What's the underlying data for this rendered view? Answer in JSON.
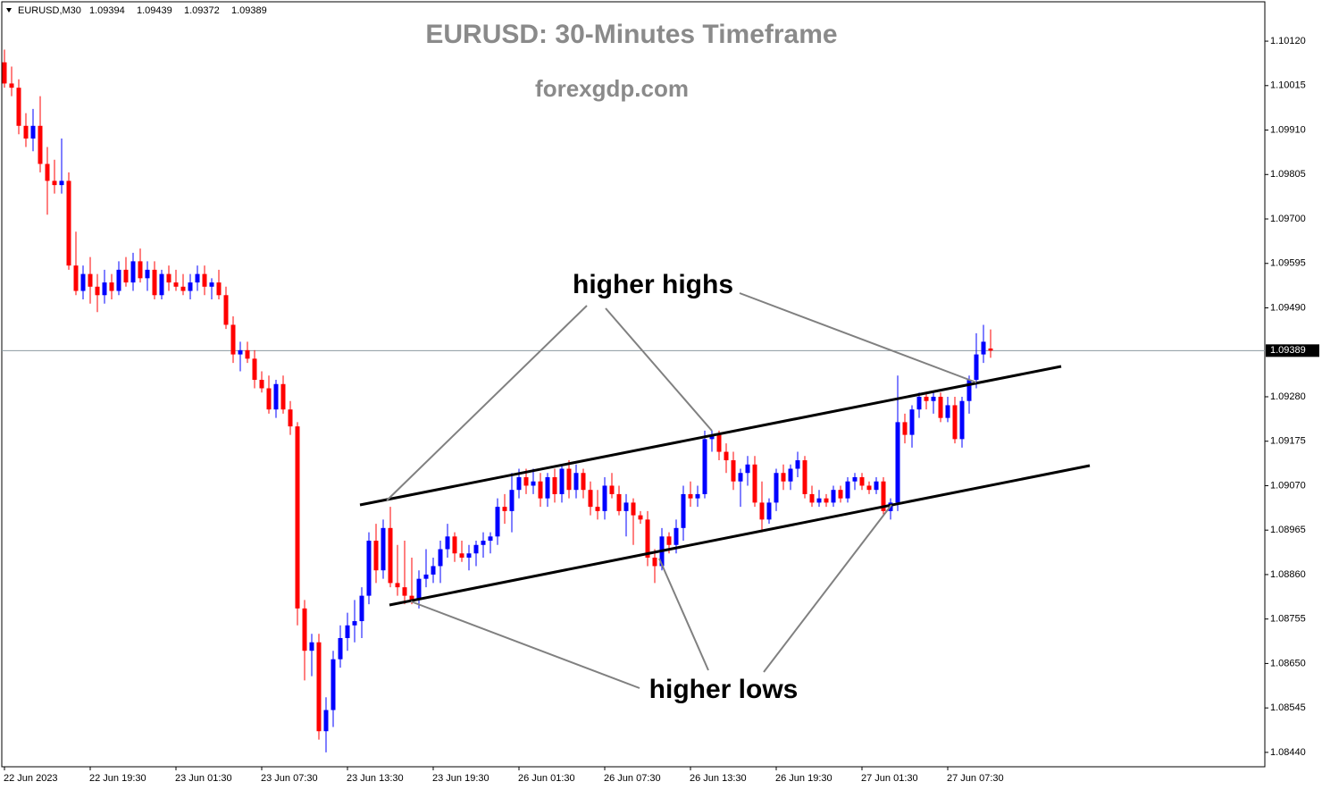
{
  "chart_data": {
    "type": "candlestick",
    "symbol": "EURUSD,M30",
    "header_ohlc": [
      1.09394,
      1.09439,
      1.09372,
      1.09389
    ],
    "title": "EURUSD: 30-Minutes Timeframe",
    "subtitle": "forexgdp.com",
    "annotations": [
      "higher highs",
      "higher lows"
    ],
    "up_color": "#0000ff",
    "down_color": "#ff0000",
    "current_price": 1.09389,
    "ylim": [
      1.08406,
      1.10213
    ],
    "yticks": [
      {
        "value": 1.1012,
        "label": "1.10120"
      },
      {
        "value": 1.10015,
        "label": "1.10015"
      },
      {
        "value": 1.0991,
        "label": "1.09910"
      },
      {
        "value": 1.09805,
        "label": "1.09805"
      },
      {
        "value": 1.097,
        "label": "1.09700"
      },
      {
        "value": 1.09595,
        "label": "1.09595"
      },
      {
        "value": 1.0949,
        "label": "1.09490"
      },
      {
        "value": 1.0928,
        "label": "1.09280"
      },
      {
        "value": 1.09175,
        "label": "1.09175"
      },
      {
        "value": 1.0907,
        "label": "1.09070"
      },
      {
        "value": 1.08965,
        "label": "1.08965"
      },
      {
        "value": 1.0886,
        "label": "1.08860"
      },
      {
        "value": 1.08755,
        "label": "1.08755"
      },
      {
        "value": 1.0865,
        "label": "1.08650"
      },
      {
        "value": 1.08545,
        "label": "1.08545"
      },
      {
        "value": 1.0844,
        "label": "1.08440"
      }
    ],
    "categories": [
      "22 Jun 2023",
      null,
      null,
      null,
      null,
      null,
      null,
      null,
      null,
      null,
      null,
      null,
      "22 Jun 19:30",
      null,
      null,
      null,
      null,
      null,
      null,
      null,
      null,
      null,
      null,
      null,
      "23 Jun 01:30",
      null,
      null,
      null,
      null,
      null,
      null,
      null,
      null,
      null,
      null,
      null,
      "23 Jun 07:30",
      null,
      null,
      null,
      null,
      null,
      null,
      null,
      null,
      null,
      null,
      null,
      "23 Jun 13:30",
      null,
      null,
      null,
      null,
      null,
      null,
      null,
      null,
      null,
      null,
      null,
      "23 Jun 19:30",
      null,
      null,
      null,
      null,
      null,
      null,
      null,
      null,
      null,
      null,
      null,
      "26 Jun 01:30",
      null,
      null,
      null,
      null,
      null,
      null,
      null,
      null,
      null,
      null,
      null,
      "26 Jun 07:30",
      null,
      null,
      null,
      null,
      null,
      null,
      null,
      null,
      null,
      null,
      null,
      "26 Jun 13:30",
      null,
      null,
      null,
      null,
      null,
      null,
      null,
      null,
      null,
      null,
      null,
      "26 Jun 19:30",
      null,
      null,
      null,
      null,
      null,
      null,
      null,
      null,
      null,
      null,
      null,
      "27 Jun 01:30",
      null,
      null,
      null,
      null,
      null,
      null,
      null,
      null,
      null,
      null,
      null,
      "27 Jun 07:30",
      null,
      null,
      null,
      null,
      null,
      null
    ],
    "open": [
      1.1007,
      1.1002,
      1.1001,
      1.0992,
      1.0989,
      1.0992,
      1.0983,
      1.0979,
      1.0978,
      1.0979,
      1.0959,
      1.0953,
      1.0957,
      1.0954,
      1.0952,
      1.0955,
      1.0953,
      1.0958,
      1.0955,
      1.096,
      1.0956,
      1.0958,
      1.0952,
      1.0957,
      1.0955,
      1.0954,
      1.0953,
      1.0955,
      1.0957,
      1.0954,
      1.0955,
      1.0952,
      1.0945,
      1.0938,
      1.0939,
      1.0937,
      1.0932,
      1.093,
      1.0925,
      1.0931,
      1.0925,
      1.0921,
      1.0878,
      1.0868,
      1.087,
      1.0849,
      1.0854,
      1.0866,
      1.0871,
      1.0874,
      1.0875,
      1.0881,
      1.0894,
      1.0887,
      1.0897,
      1.0884,
      1.0883,
      1.0881,
      1.088,
      1.0885,
      1.0886,
      1.0888,
      1.0892,
      1.0895,
      1.0891,
      1.089,
      1.0891,
      1.0893,
      1.0894,
      1.0895,
      1.0902,
      1.0901,
      1.0906,
      1.0909,
      1.0907,
      1.0908,
      1.0904,
      1.0909,
      1.0905,
      1.0911,
      1.0906,
      1.091,
      1.0906,
      1.0902,
      1.0901,
      1.0907,
      1.0905,
      1.0901,
      1.0903,
      1.09,
      1.0899,
      1.089,
      1.0888,
      1.0895,
      1.0893,
      1.0897,
      1.0905,
      1.0904,
      1.0905,
      1.0918,
      1.0919,
      1.0915,
      1.0913,
      1.0908,
      1.091,
      1.0912,
      1.0903,
      1.0899,
      1.0903,
      1.091,
      1.0908,
      1.0911,
      1.0913,
      1.0905,
      1.0903,
      1.0904,
      1.0903,
      1.0906,
      1.0904,
      1.0908,
      1.0909,
      1.0907,
      1.0906,
      1.0908,
      1.0901,
      1.0903,
      1.0922,
      1.0919,
      1.0925,
      1.0928,
      1.0927,
      1.0928,
      1.0923,
      1.0926,
      1.0918,
      1.0927,
      1.0932,
      1.0938,
      1.09394
    ],
    "high": [
      1.101,
      1.1006,
      1.1003,
      1.0995,
      1.0996,
      1.0999,
      1.0987,
      1.0984,
      1.0989,
      1.0981,
      1.0967,
      1.0959,
      1.0961,
      1.0957,
      1.0958,
      1.0957,
      1.096,
      1.0961,
      1.0962,
      1.0963,
      1.096,
      1.096,
      1.0958,
      1.0959,
      1.0958,
      1.0957,
      1.0957,
      1.0959,
      1.0959,
      1.0956,
      1.0958,
      1.0954,
      1.0947,
      1.0941,
      1.0941,
      1.0939,
      1.0934,
      1.0933,
      1.0932,
      1.0933,
      1.0927,
      1.0922,
      1.088,
      1.0872,
      1.0872,
      1.0857,
      1.0868,
      1.0874,
      1.0877,
      1.088,
      1.0883,
      1.0896,
      1.0898,
      1.0899,
      1.0902,
      1.0893,
      1.0894,
      1.089,
      1.0887,
      1.0892,
      1.089,
      1.0894,
      1.0898,
      1.0896,
      1.0894,
      1.0893,
      1.0894,
      1.0896,
      1.0896,
      1.0904,
      1.0905,
      1.091,
      1.0911,
      1.0911,
      1.0911,
      1.091,
      1.091,
      1.0911,
      1.0912,
      1.0913,
      1.0912,
      1.0911,
      1.0908,
      1.0906,
      1.0909,
      1.091,
      1.0907,
      1.0905,
      1.0904,
      1.0901,
      1.0901,
      1.0892,
      1.0897,
      1.0896,
      1.0899,
      1.0907,
      1.0908,
      1.0907,
      1.092,
      1.092,
      1.092,
      1.0917,
      1.0915,
      1.0911,
      1.0914,
      1.0914,
      1.0908,
      1.0904,
      1.0911,
      1.0912,
      1.0912,
      1.0915,
      1.0914,
      1.0907,
      1.0906,
      1.0905,
      1.0907,
      1.0907,
      1.0909,
      1.091,
      1.091,
      1.0908,
      1.0909,
      1.0909,
      1.0904,
      1.0933,
      1.0924,
      1.0926,
      1.0929,
      1.0929,
      1.0929,
      1.0929,
      1.0928,
      1.0928,
      1.0928,
      1.0933,
      1.0943,
      1.0945,
      1.09439
    ],
    "low": [
      1.1001,
      1.0999,
      1.099,
      1.0987,
      1.0986,
      1.0981,
      1.0971,
      1.0976,
      1.0976,
      1.0958,
      1.0952,
      1.0951,
      1.095,
      1.0948,
      1.095,
      1.0951,
      1.0952,
      1.0954,
      1.0953,
      1.0955,
      1.0953,
      1.0951,
      1.0951,
      1.0953,
      1.0953,
      1.0952,
      1.0951,
      1.0953,
      1.0952,
      1.0951,
      1.0951,
      1.0944,
      1.0936,
      1.0934,
      1.0936,
      1.093,
      1.0929,
      1.0924,
      1.0923,
      1.0924,
      1.0919,
      1.0874,
      1.0861,
      1.0862,
      1.0847,
      1.0844,
      1.085,
      1.0864,
      1.0868,
      1.087,
      1.0871,
      1.0879,
      1.0884,
      1.0885,
      1.0883,
      1.0881,
      1.0879,
      1.0879,
      1.0878,
      1.0883,
      1.0884,
      1.0884,
      1.089,
      1.0889,
      1.0889,
      1.0887,
      1.0888,
      1.089,
      1.0891,
      1.0893,
      1.0898,
      1.0896,
      1.0904,
      1.0905,
      1.0905,
      1.0902,
      1.0902,
      1.0903,
      1.0903,
      1.0904,
      1.0904,
      1.0904,
      1.09,
      1.0899,
      1.0899,
      1.0904,
      1.09,
      1.0895,
      1.0893,
      1.0898,
      1.0888,
      1.0884,
      1.0887,
      1.0891,
      1.0891,
      1.0894,
      1.0902,
      1.0902,
      1.0904,
      1.0915,
      1.0913,
      1.091,
      1.0906,
      1.0902,
      1.0907,
      1.0902,
      1.0896,
      1.0898,
      1.0901,
      1.0906,
      1.0906,
      1.0909,
      1.0904,
      1.0902,
      1.0902,
      1.0902,
      1.0902,
      1.0903,
      1.0903,
      1.0906,
      1.0906,
      1.0905,
      1.0905,
      1.09,
      1.0899,
      1.0901,
      1.0917,
      1.0916,
      1.0923,
      1.0925,
      1.0924,
      1.0922,
      1.0922,
      1.0917,
      1.0916,
      1.0924,
      1.093,
      1.0936,
      1.09372
    ],
    "close": [
      1.1002,
      1.1001,
      1.0992,
      1.0989,
      1.0992,
      1.0983,
      1.0979,
      1.0978,
      1.0979,
      1.0959,
      1.0953,
      1.0957,
      1.0954,
      1.0952,
      1.0955,
      1.0953,
      1.0958,
      1.0955,
      1.096,
      1.0956,
      1.0958,
      1.0952,
      1.0957,
      1.0955,
      1.0954,
      1.0953,
      1.0955,
      1.0957,
      1.0954,
      1.0955,
      1.0952,
      1.0945,
      1.0938,
      1.0939,
      1.0937,
      1.0932,
      1.093,
      1.0925,
      1.0931,
      1.0925,
      1.0921,
      1.0878,
      1.0868,
      1.087,
      1.0849,
      1.0854,
      1.0866,
      1.0871,
      1.0874,
      1.0875,
      1.0881,
      1.0894,
      1.0887,
      1.0897,
      1.0884,
      1.0883,
      1.0881,
      1.088,
      1.0885,
      1.0886,
      1.0888,
      1.0892,
      1.0895,
      1.0891,
      1.089,
      1.0891,
      1.0893,
      1.0894,
      1.0895,
      1.0902,
      1.0901,
      1.0906,
      1.0909,
      1.0907,
      1.0908,
      1.0904,
      1.0909,
      1.0905,
      1.0911,
      1.0906,
      1.091,
      1.0906,
      1.0902,
      1.0901,
      1.0907,
      1.0905,
      1.0901,
      1.0903,
      1.09,
      1.0899,
      1.089,
      1.0888,
      1.0895,
      1.0893,
      1.0897,
      1.0905,
      1.0904,
      1.0905,
      1.0918,
      1.0919,
      1.0915,
      1.0913,
      1.0908,
      1.091,
      1.0912,
      1.0903,
      1.0899,
      1.0903,
      1.091,
      1.0908,
      1.0911,
      1.0913,
      1.0905,
      1.0903,
      1.0904,
      1.0903,
      1.0906,
      1.0904,
      1.0908,
      1.0909,
      1.0907,
      1.0906,
      1.0908,
      1.0901,
      1.0903,
      1.0922,
      1.0919,
      1.0925,
      1.0928,
      1.0927,
      1.0928,
      1.0923,
      1.0926,
      1.0918,
      1.0927,
      1.0932,
      1.0938,
      1.0941,
      1.09389
    ]
  }
}
